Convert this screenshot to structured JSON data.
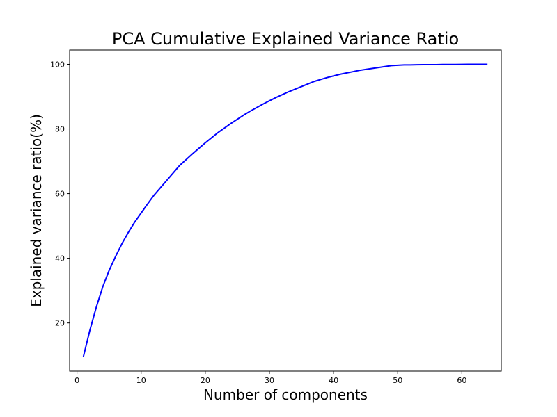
{
  "chart_data": {
    "type": "line",
    "title": "PCA Cumulative Explained Variance Ratio",
    "xlabel": "Number of components",
    "ylabel": "Explained variance ratio(%)",
    "xlim": [
      -1.15,
      66.15
    ],
    "ylim": [
      5.1,
      104.4
    ],
    "xticks": [
      0,
      10,
      20,
      30,
      40,
      50,
      60
    ],
    "yticks": [
      20,
      40,
      60,
      80,
      100
    ],
    "grid": false,
    "line_color": "#0000ff",
    "series": [
      {
        "x": [
          1,
          2,
          3,
          4,
          5,
          6,
          7,
          8,
          9,
          10,
          11,
          12,
          13,
          14,
          15,
          16,
          17,
          18,
          19,
          20,
          21,
          22,
          23,
          24,
          25,
          26,
          27,
          28,
          29,
          30,
          31,
          32,
          33,
          34,
          35,
          36,
          37,
          38,
          39,
          40,
          41,
          42,
          43,
          44,
          45,
          46,
          47,
          48,
          49,
          50,
          51,
          52,
          53,
          54,
          55,
          56,
          57,
          58,
          59,
          60,
          61,
          62,
          63,
          64
        ],
        "values": [
          9.6,
          17.7,
          24.8,
          31.1,
          36.2,
          40.5,
          44.5,
          48.0,
          51.2,
          54.0,
          56.8,
          59.5,
          61.8,
          64.1,
          66.4,
          68.7,
          70.5,
          72.3,
          74.0,
          75.7,
          77.3,
          78.9,
          80.3,
          81.7,
          83.0,
          84.3,
          85.5,
          86.6,
          87.7,
          88.7,
          89.7,
          90.6,
          91.5,
          92.3,
          93.1,
          93.9,
          94.7,
          95.3,
          95.9,
          96.4,
          96.9,
          97.3,
          97.7,
          98.1,
          98.4,
          98.7,
          99.0,
          99.3,
          99.6,
          99.7,
          99.8,
          99.8,
          99.85,
          99.9,
          99.9,
          99.9,
          99.95,
          99.95,
          99.95,
          99.97,
          99.98,
          99.99,
          100.0,
          100.0
        ]
      }
    ]
  }
}
